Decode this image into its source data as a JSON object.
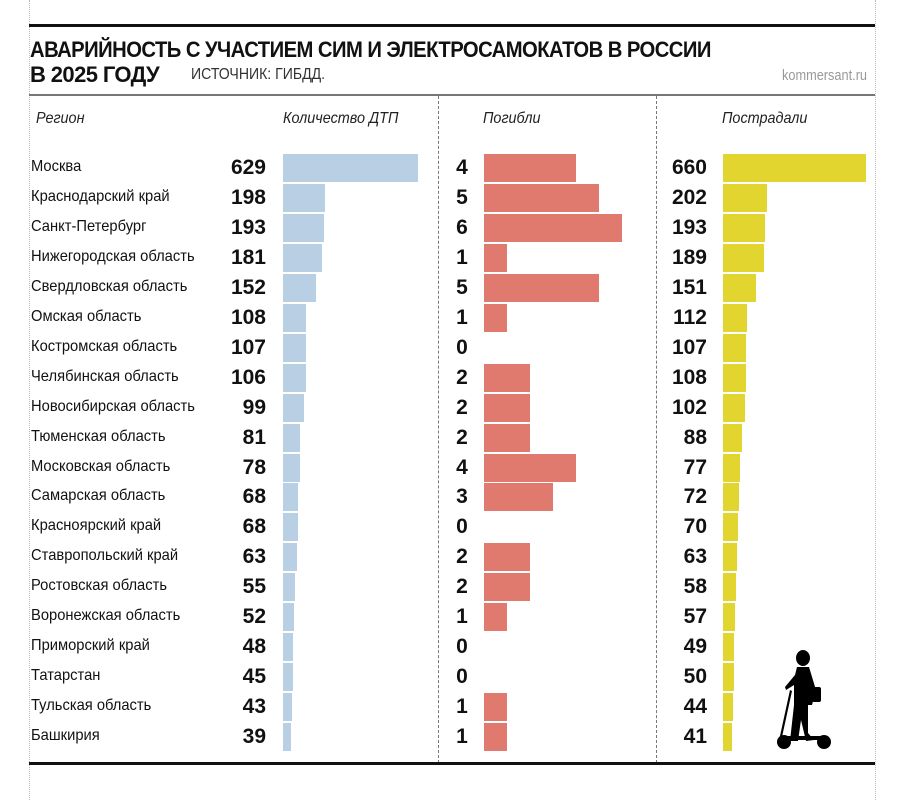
{
  "title": "АВАРИЙНОСТЬ С УЧАСТИЕМ СИМ И ЭЛЕКТРОСАМОКАТОВ В РОССИИ",
  "subtitle": "В 2025 ГОДУ",
  "source": "ИСТОЧНИК: ГИБДД.",
  "site": "kommersant.ru",
  "colors": {
    "accidents": "#b8cfe4",
    "deaths": "#e07a6e",
    "injured": "#e2d530"
  },
  "chart_data": {
    "type": "bar",
    "orientation": "horizontal",
    "column_headers": {
      "region": "Регион",
      "accidents": "Количество ДТП",
      "deaths": "Погибли",
      "injured": "Пострадали"
    },
    "categories": [
      "Москва",
      "Краснодарский край",
      "Санкт-Петербург",
      "Нижегородская область",
      "Свердловская область",
      "Омская область",
      "Костромская область",
      "Челябинская область",
      "Новосибирская область",
      "Тюменская область",
      "Московская область",
      "Самарская область",
      "Красноярский край",
      "Ставропольский край",
      "Ростовская область",
      "Воронежская область",
      "Приморский край",
      "Татарстан",
      "Тульская область",
      "Башкирия"
    ],
    "series": [
      {
        "name": "Количество ДТП",
        "values": [
          629,
          198,
          193,
          181,
          152,
          108,
          107,
          106,
          99,
          81,
          78,
          68,
          68,
          63,
          55,
          52,
          48,
          45,
          43,
          39
        ]
      },
      {
        "name": "Погибли",
        "values": [
          4,
          5,
          6,
          1,
          5,
          1,
          0,
          2,
          2,
          2,
          4,
          3,
          0,
          2,
          2,
          1,
          0,
          0,
          1,
          1
        ]
      },
      {
        "name": "Пострадали",
        "values": [
          660,
          202,
          193,
          189,
          151,
          112,
          107,
          108,
          102,
          88,
          77,
          72,
          70,
          63,
          58,
          57,
          49,
          50,
          44,
          41
        ]
      }
    ]
  },
  "illustration": "person-on-electric-scooter-silhouette"
}
